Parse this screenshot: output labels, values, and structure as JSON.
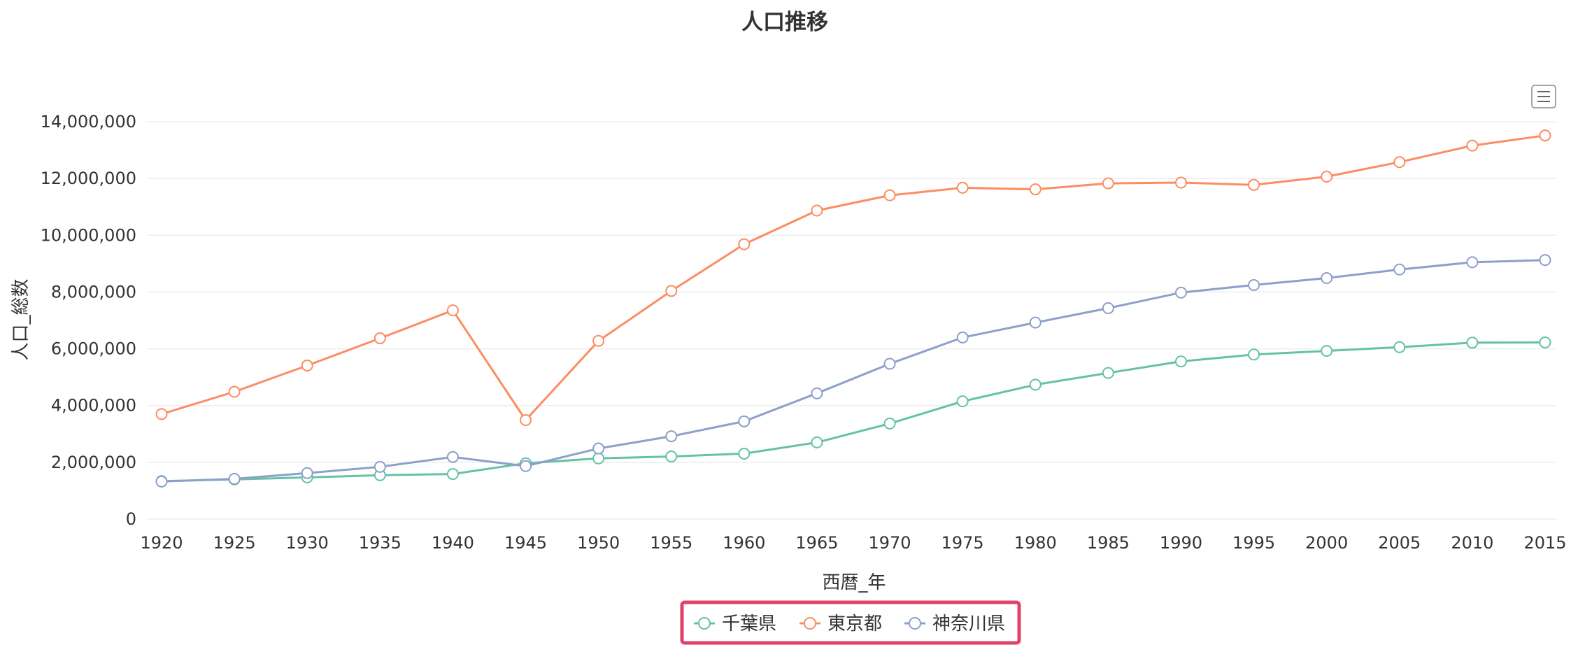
{
  "chart_data": {
    "type": "line",
    "title": "人口推移",
    "xlabel": "西暦_年",
    "ylabel": "人口_総数",
    "x": [
      1920,
      1925,
      1930,
      1935,
      1940,
      1945,
      1950,
      1955,
      1960,
      1965,
      1970,
      1975,
      1980,
      1985,
      1990,
      1995,
      2000,
      2005,
      2010,
      2015
    ],
    "ylim": [
      0,
      14000000
    ],
    "yticks": [
      0,
      2000000,
      4000000,
      6000000,
      8000000,
      10000000,
      12000000,
      14000000
    ],
    "grid": true,
    "legend_position": "bottom-center",
    "series": [
      {
        "name": "千葉県",
        "color": "#66c2a5",
        "values": [
          1336000,
          1399000,
          1470000,
          1546000,
          1588000,
          1967000,
          2139000,
          2205000,
          2306000,
          2702000,
          3367000,
          4149000,
          4735000,
          5148000,
          5555000,
          5798000,
          5926000,
          6056000,
          6216000,
          6223000
        ]
      },
      {
        "name": "東京都",
        "color": "#fc8d62",
        "values": [
          3699000,
          4485000,
          5409000,
          6370000,
          7355000,
          3488000,
          6278000,
          8037000,
          9684000,
          10869000,
          11408000,
          11674000,
          11618000,
          11829000,
          11856000,
          11774000,
          12064000,
          12577000,
          13159000,
          13515000
        ]
      },
      {
        "name": "神奈川県",
        "color": "#8da0cb",
        "values": [
          1323000,
          1417000,
          1620000,
          1840000,
          2189000,
          1866000,
          2488000,
          2919000,
          3443000,
          4431000,
          5472000,
          6398000,
          6924000,
          7432000,
          7980000,
          8246000,
          8490000,
          8792000,
          9048000,
          9126000
        ]
      }
    ]
  },
  "toolbar": {
    "menu_icon": "hamburger-menu-icon"
  }
}
